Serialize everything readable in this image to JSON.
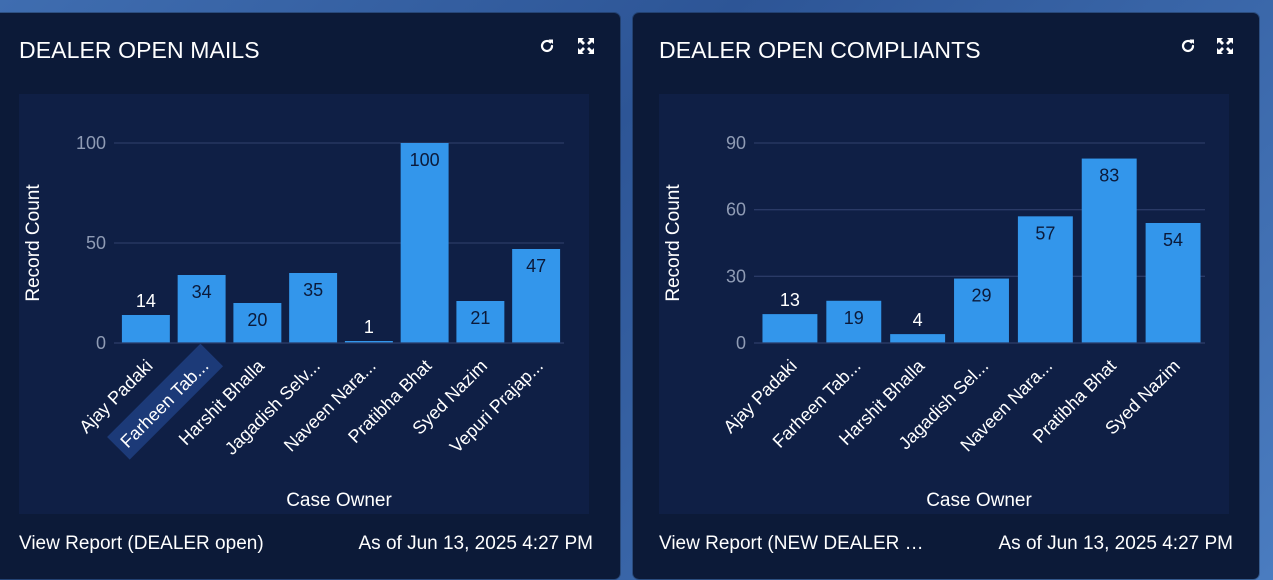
{
  "colors": {
    "bar": "#3396eb",
    "card_bg": "#0c1a38",
    "plot_bg": "#0f1f45",
    "grid": "#2a3a66",
    "highlight": "#1c3a78"
  },
  "cards": [
    {
      "title": "DEALER OPEN MAILS",
      "refresh_icon": "refresh-icon",
      "expand_icon": "expand-icon",
      "footer_link": "View Report (DEALER open)",
      "footer_timestamp": "As of Jun 13, 2025 4:27 PM"
    },
    {
      "title": "DEALER OPEN COMPLIANTS",
      "refresh_icon": "refresh-icon",
      "expand_icon": "expand-icon",
      "footer_link": "View Report (NEW DEALER …",
      "footer_timestamp": "As of Jun 13, 2025 4:27 PM"
    }
  ],
  "chart_data": [
    {
      "type": "bar",
      "categories": [
        "Ajay Padaki",
        "Farheen Tab...",
        "Harshit Bhalla",
        "Jagadish Selv...",
        "Naveen Nara...",
        "Pratibha Bhat",
        "Syed Nazim",
        "Vepuri Prajap..."
      ],
      "values": [
        14,
        34,
        20,
        35,
        1,
        100,
        21,
        47
      ],
      "xlabel": "Case Owner",
      "ylabel": "Record Count",
      "ylim": [
        0,
        100
      ],
      "yticks": [
        0,
        50,
        100
      ],
      "grid": true,
      "highlighted_category": "Farheen Tab..."
    },
    {
      "type": "bar",
      "categories": [
        "Ajay Padaki",
        "Farheen Tab...",
        "Harshit Bhalla",
        "Jagadish Sel...",
        "Naveen Nara...",
        "Pratibha Bhat",
        "Syed Nazim"
      ],
      "values": [
        13,
        19,
        4,
        29,
        57,
        83,
        54
      ],
      "xlabel": "Case Owner",
      "ylabel": "Record Count",
      "ylim": [
        0,
        90
      ],
      "yticks": [
        0,
        30,
        60,
        90
      ],
      "grid": true
    }
  ]
}
